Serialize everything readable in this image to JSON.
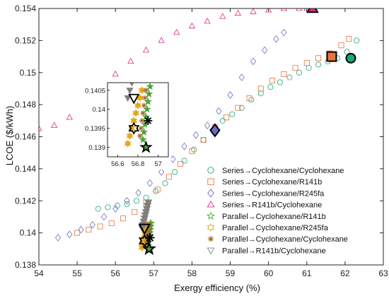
{
  "chart_data": {
    "type": "scatter",
    "xlabel": "Exergy efficiency (%)",
    "ylabel": "LCOE ($/kWh)",
    "xlim": [
      54,
      63
    ],
    "ylim": [
      0.138,
      0.154
    ],
    "xticks": [
      54,
      55,
      56,
      57,
      58,
      59,
      60,
      61,
      62,
      63
    ],
    "yticks": [
      0.138,
      0.14,
      0.142,
      0.144,
      0.146,
      0.148,
      0.15,
      0.152,
      0.154
    ],
    "xtick_labels": [
      "54",
      "55",
      "56",
      "57",
      "58",
      "59",
      "60",
      "61",
      "62",
      "63"
    ],
    "ytick_labels": [
      "0.138",
      "0.14",
      "0.142",
      "0.144",
      "0.146",
      "0.148",
      "0.15",
      "0.152",
      "0.154"
    ],
    "grid": false,
    "legend_position": "bottom-right",
    "series": [
      {
        "name": "Series→Cyclohexane/Cyclohexane",
        "marker": "circle",
        "color": "#1aa57a",
        "x": [
          55.55,
          55.8,
          56.05,
          56.3,
          56.55,
          56.8,
          57.05,
          57.3,
          57.55,
          57.8,
          58.05,
          58.3,
          58.55,
          58.8,
          59.05,
          59.3,
          59.55,
          59.8,
          60.05,
          60.3,
          60.55,
          60.8,
          61.05,
          61.3,
          61.55,
          61.8,
          62.05,
          62.3
        ],
        "y": [
          0.1415,
          0.1416,
          0.1417,
          0.1418,
          0.142,
          0.1422,
          0.1426,
          0.1431,
          0.1438,
          0.1445,
          0.1452,
          0.1458,
          0.1464,
          0.147,
          0.1474,
          0.1478,
          0.1483,
          0.1487,
          0.1491,
          0.1494,
          0.1497,
          0.15,
          0.1503,
          0.1505,
          0.1507,
          0.1509,
          0.1513,
          0.152
        ],
        "highlight": {
          "x": 62.15,
          "y": 0.1509
        }
      },
      {
        "name": "Series→Cyclohexane/R141b",
        "marker": "square",
        "color": "#e8743b",
        "x": [
          55.0,
          55.3,
          55.6,
          55.9,
          56.2,
          56.5,
          56.8,
          57.1,
          57.4,
          57.7,
          58.0,
          58.3,
          58.6,
          58.9,
          59.2,
          59.5,
          59.8,
          60.1,
          60.4,
          60.7,
          61.0,
          61.3,
          61.6,
          61.9,
          62.1
        ],
        "y": [
          0.14,
          0.1402,
          0.1404,
          0.1406,
          0.1409,
          0.1413,
          0.1419,
          0.1427,
          0.1435,
          0.1443,
          0.1451,
          0.1458,
          0.1466,
          0.1472,
          0.1478,
          0.1484,
          0.149,
          0.1495,
          0.1499,
          0.1503,
          0.1506,
          0.1509,
          0.1512,
          0.1517,
          0.1521
        ],
        "highlight": {
          "x": 61.65,
          "y": 0.151
        }
      },
      {
        "name": "Series→Cyclohexane/R245fa",
        "marker": "diamond",
        "color": "#6b6bc0",
        "x": [
          54.5,
          54.8,
          55.1,
          55.4,
          55.7,
          56.0,
          56.3,
          56.6,
          56.9,
          57.2,
          57.5,
          57.8,
          58.1,
          58.4,
          58.7,
          59.0,
          59.3,
          59.6,
          59.9,
          60.2,
          60.4
        ],
        "y": [
          0.1397,
          0.1399,
          0.1402,
          0.1405,
          0.141,
          0.1415,
          0.142,
          0.1425,
          0.1431,
          0.1438,
          0.1446,
          0.1454,
          0.1461,
          0.1467,
          0.1476,
          0.1486,
          0.1497,
          0.1507,
          0.1514,
          0.1521,
          0.1525
        ],
        "highlight": {
          "x": 58.6,
          "y": 0.1464
        }
      },
      {
        "name": "Series→R141b/Cyclohexane",
        "marker": "triangle-up",
        "color": "#e0288c",
        "x": [
          54.0,
          54.4,
          54.8,
          55.2,
          55.6,
          56.0,
          56.4,
          56.8,
          57.2,
          57.6,
          58.0,
          58.4,
          58.8,
          59.2,
          59.6,
          60.0,
          60.4,
          60.8,
          61.0
        ],
        "y": [
          0.1465,
          0.1467,
          0.1472,
          0.148,
          0.149,
          0.1499,
          0.1507,
          0.1514,
          0.152,
          0.1525,
          0.1529,
          0.1532,
          0.1535,
          0.1537,
          0.1538,
          0.1539,
          0.154,
          0.154,
          0.154
        ],
        "highlight": {
          "x": 61.15,
          "y": 0.154
        }
      },
      {
        "name": "Parallel→Cyclohexane/R141b",
        "marker": "star",
        "color": "#4ba33a",
        "x": [
          56.85,
          56.86,
          56.87,
          56.88,
          56.89,
          56.9,
          56.91,
          56.92
        ],
        "y": [
          0.1392,
          0.1394,
          0.1396,
          0.1398,
          0.14,
          0.1402,
          0.1404,
          0.1406
        ],
        "highlight": {
          "x": 56.88,
          "y": 0.139
        }
      },
      {
        "name": "Parallel→Cyclohexane/R245fa",
        "marker": "hexagram",
        "color": "#e6a817",
        "x": [
          56.7,
          56.72,
          56.74,
          56.76,
          56.78,
          56.8,
          56.82,
          56.84
        ],
        "y": [
          0.1391,
          0.1393,
          0.1395,
          0.1397,
          0.1399,
          0.1401,
          0.1403,
          0.1405
        ],
        "highlight": {
          "x": 56.76,
          "y": 0.1395
        }
      },
      {
        "name": "Parallel→Cyclohexane/Cyclohexane",
        "marker": "asterisk",
        "color": "#9c6b2e",
        "x": [
          56.82,
          56.83,
          56.84,
          56.85,
          56.86,
          56.87,
          56.88
        ],
        "y": [
          0.1393,
          0.1395,
          0.1397,
          0.1399,
          0.1401,
          0.1403,
          0.1405
        ],
        "highlight": {
          "x": 56.9,
          "y": 0.1397
        }
      },
      {
        "name": "Parallel→R141b/Cyclohexane",
        "marker": "triangle-down",
        "color": "#7f7f7f",
        "x": [
          56.7,
          56.72,
          56.74,
          56.76,
          56.78,
          56.8,
          56.82,
          56.84,
          56.86
        ],
        "y": [
          0.1403,
          0.1405,
          0.1407,
          0.1409,
          0.1411,
          0.1413,
          0.1415,
          0.1417,
          0.1419
        ],
        "highlight": {
          "x": 56.76,
          "y": 0.1403
        }
      }
    ],
    "inset": {
      "xlim": [
        56.5,
        57.1
      ],
      "ylim": [
        0.13875,
        0.1407
      ],
      "xticks": [
        56.6,
        56.8,
        57
      ],
      "yticks": [
        0.139,
        0.1395,
        0.14,
        0.1405
      ],
      "xtick_labels": [
        "56.6",
        "56.8",
        "57"
      ],
      "ytick_labels": [
        "0.139",
        "0.1395",
        "0.14",
        "0.1405"
      ]
    }
  }
}
